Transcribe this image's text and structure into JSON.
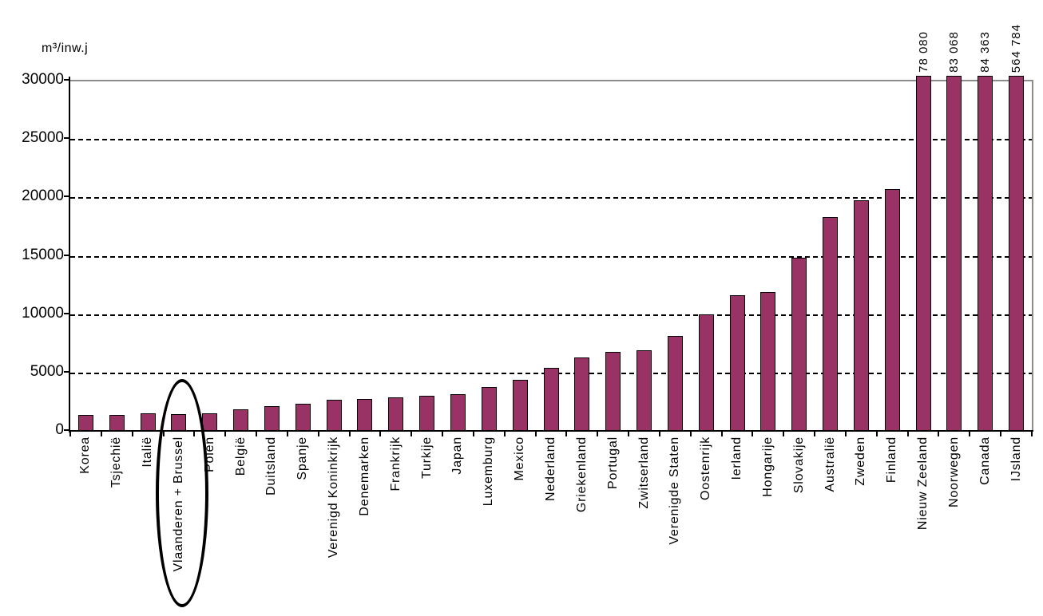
{
  "chart_data": {
    "type": "bar",
    "title": "",
    "ylabel": "m³/inw.j",
    "xlabel": "",
    "ylim": [
      0,
      30000
    ],
    "yticks": [
      0,
      5000,
      10000,
      15000,
      20000,
      25000,
      30000
    ],
    "grid": "horizontal dashed",
    "legend_position": "none",
    "bar_color": "#993366",
    "bar_border_color": "#000000",
    "categories": [
      "Korea",
      "Tsjechië",
      "Italië",
      "Vlaanderen + Brussel",
      "Polen",
      "België",
      "Duitsland",
      "Spanje",
      "Verenigd Koninkrijk",
      "Denemarken",
      "Frankrijk",
      "Turkije",
      "Japan",
      "Luxemburg",
      "Mexico",
      "Nederland",
      "Griekenland",
      "Portugal",
      "Zwitserland",
      "Verenigde Staten",
      "Oostenrijk",
      "Ierland",
      "Hongarije",
      "Slovakije",
      "Australië",
      "Zweden",
      "Finland",
      "Nieuw Zeeland",
      "Noorwegen",
      "Canada",
      "IJsland"
    ],
    "values": [
      1450,
      1450,
      1575,
      1525,
      1575,
      1900,
      2175,
      2400,
      2750,
      2825,
      2950,
      3050,
      3225,
      3800,
      4425,
      5450,
      6375,
      6850,
      7000,
      8200,
      10050,
      11700,
      11950,
      14900,
      18400,
      19800,
      20800,
      78080,
      83068,
      84363,
      564784
    ],
    "clipped_value_labels": [
      {
        "category": "Nieuw Zeeland",
        "label": "78 080"
      },
      {
        "category": "Noorwegen",
        "label": "83 068"
      },
      {
        "category": "Canada",
        "label": "84 363"
      },
      {
        "category": "IJsland",
        "label": "564 784"
      }
    ],
    "annotation": {
      "shape": "ellipse",
      "circled_category": "Vlaanderen + Brussel"
    }
  }
}
